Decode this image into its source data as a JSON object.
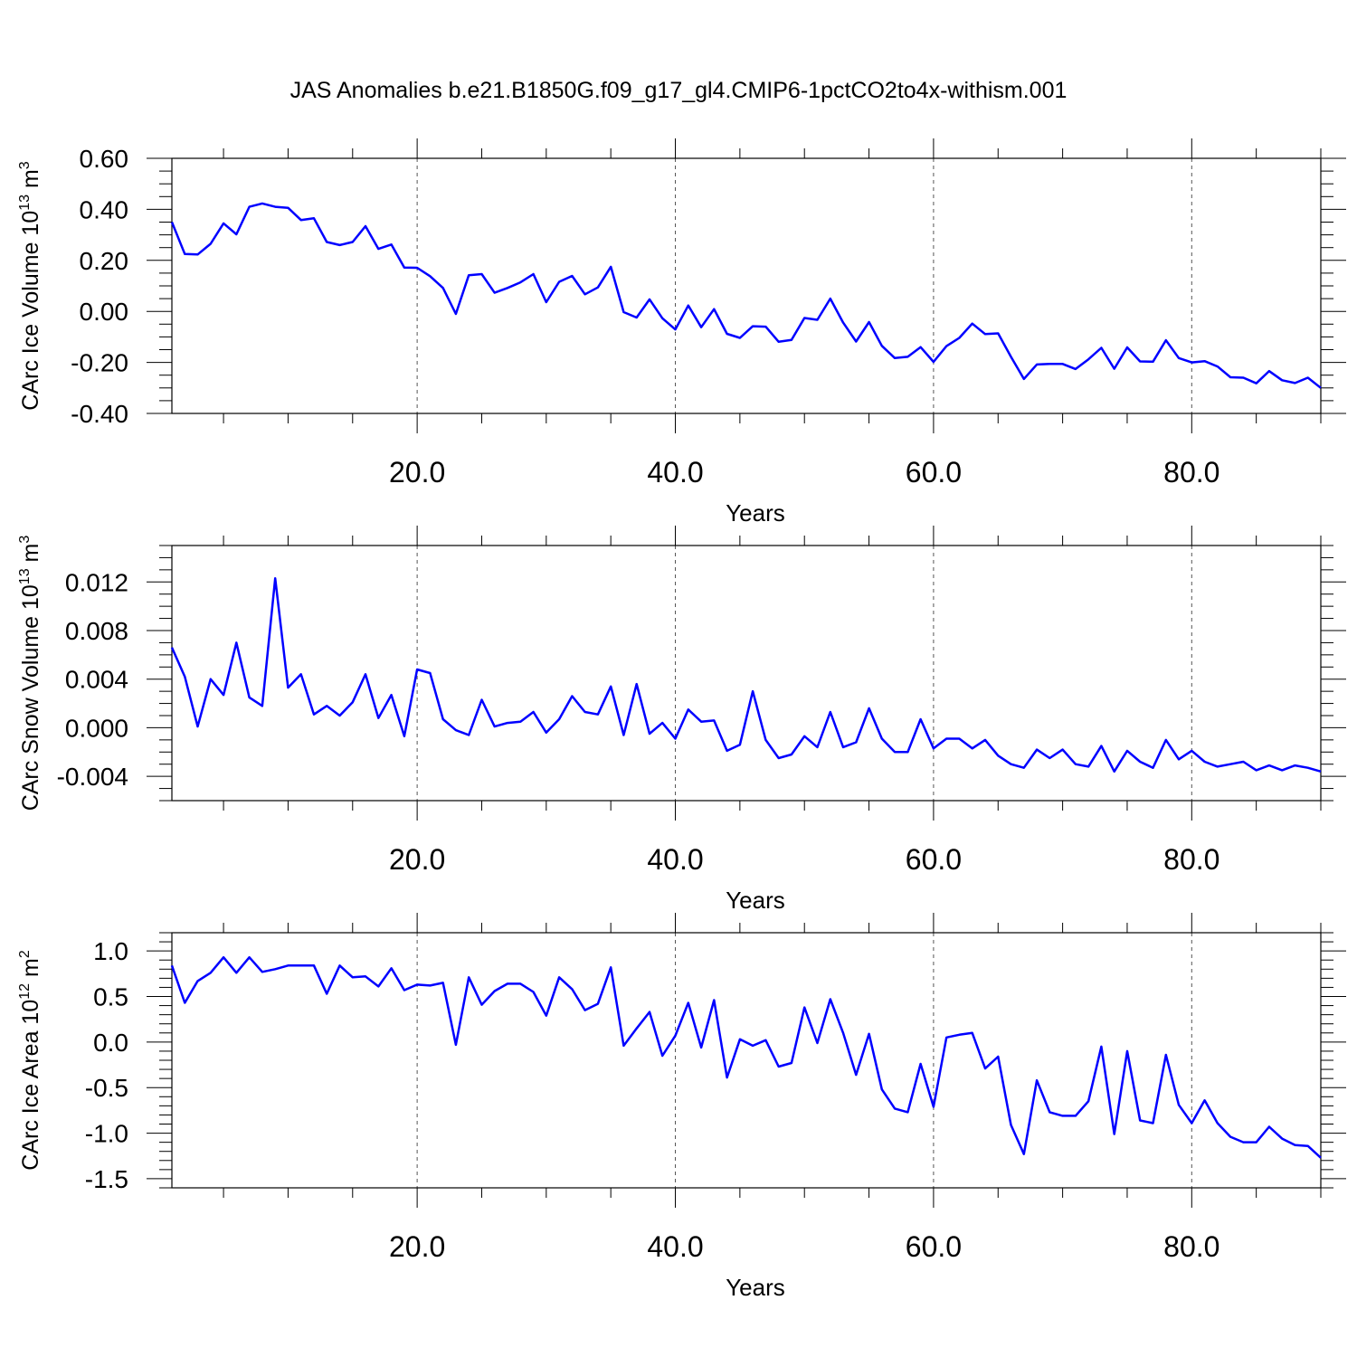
{
  "title": "JAS Anomalies b.e21.B1850G.f09_g17_gl4.CMIP6-1pctCO2to4x-withism.001",
  "line_color": "#0000ff",
  "chart_data": [
    {
      "type": "line",
      "xlabel": "Years",
      "ylabel_main": "CArc Ice Volume 10",
      "ylabel_exp": "13",
      "ylabel_unit": "m",
      "ylabel_unit_exp": "3",
      "xlim": [
        1,
        90
      ],
      "ylim": [
        -0.4,
        0.6
      ],
      "x_ticks": [
        20,
        40,
        60,
        80
      ],
      "x_tick_labels": [
        "20.0",
        "40.0",
        "60.0",
        "80.0"
      ],
      "y_ticks": [
        -0.4,
        -0.2,
        0.0,
        0.2,
        0.4,
        0.6
      ],
      "y_tick_labels": [
        "-0.40",
        "-0.20",
        "0.00",
        "0.20",
        "0.40",
        "0.60"
      ],
      "y_minor_step": 0.05,
      "grid": "vertical dashed at major x ticks",
      "x": [
        1,
        2,
        3,
        4,
        5,
        6,
        7,
        8,
        9,
        10,
        11,
        12,
        13,
        14,
        15,
        16,
        17,
        18,
        19,
        20,
        21,
        22,
        23,
        24,
        25,
        26,
        27,
        28,
        29,
        30,
        31,
        32,
        33,
        34,
        35,
        36,
        37,
        38,
        39,
        40,
        41,
        42,
        43,
        44,
        45,
        46,
        47,
        48,
        49,
        50,
        51,
        52,
        53,
        54,
        55,
        56,
        57,
        58,
        59,
        60,
        61,
        62,
        63,
        64,
        65,
        66,
        67,
        68,
        69,
        70,
        71,
        72,
        73,
        74,
        75,
        76,
        77,
        78,
        79,
        80,
        81,
        82,
        83,
        84,
        85,
        86,
        87,
        88,
        89,
        90
      ],
      "values": [
        0.35,
        0.225,
        0.223,
        0.265,
        0.345,
        0.302,
        0.41,
        0.423,
        0.41,
        0.406,
        0.358,
        0.365,
        0.272,
        0.26,
        0.272,
        0.334,
        0.245,
        0.262,
        0.172,
        0.171,
        0.138,
        0.092,
        -0.01,
        0.142,
        0.146,
        0.073,
        0.092,
        0.114,
        0.146,
        0.036,
        0.116,
        0.139,
        0.067,
        0.094,
        0.175,
        -0.003,
        -0.024,
        0.047,
        -0.027,
        -0.071,
        0.023,
        -0.062,
        0.009,
        -0.088,
        -0.104,
        -0.058,
        -0.06,
        -0.119,
        -0.112,
        -0.026,
        -0.033,
        0.05,
        -0.044,
        -0.118,
        -0.042,
        -0.135,
        -0.183,
        -0.178,
        -0.14,
        -0.198,
        -0.136,
        -0.104,
        -0.048,
        -0.089,
        -0.086,
        -0.178,
        -0.265,
        -0.208,
        -0.206,
        -0.206,
        -0.226,
        -0.188,
        -0.143,
        -0.225,
        -0.141,
        -0.196,
        -0.197,
        -0.113,
        -0.183,
        -0.2,
        -0.195,
        -0.216,
        -0.258,
        -0.26,
        -0.282,
        -0.234,
        -0.27,
        -0.281,
        -0.26,
        -0.3
      ]
    },
    {
      "type": "line",
      "xlabel": "Years",
      "ylabel_main": "CArc Snow Volume 10",
      "ylabel_exp": "13",
      "ylabel_unit": "m",
      "ylabel_unit_exp": "3",
      "xlim": [
        1,
        90
      ],
      "ylim": [
        -0.006,
        0.015
      ],
      "x_ticks": [
        20,
        40,
        60,
        80
      ],
      "x_tick_labels": [
        "20.0",
        "40.0",
        "60.0",
        "80.0"
      ],
      "y_ticks": [
        -0.004,
        0.0,
        0.004,
        0.008,
        0.012
      ],
      "y_tick_labels": [
        "-0.004",
        "0.000",
        "0.004",
        "0.008",
        "0.012"
      ],
      "y_minor_step": 0.001,
      "grid": "vertical dashed at major x ticks",
      "x": [
        1,
        2,
        3,
        4,
        5,
        6,
        7,
        8,
        9,
        10,
        11,
        12,
        13,
        14,
        15,
        16,
        17,
        18,
        19,
        20,
        21,
        22,
        23,
        24,
        25,
        26,
        27,
        28,
        29,
        30,
        31,
        32,
        33,
        34,
        35,
        36,
        37,
        38,
        39,
        40,
        41,
        42,
        43,
        44,
        45,
        46,
        47,
        48,
        49,
        50,
        51,
        52,
        53,
        54,
        55,
        56,
        57,
        58,
        59,
        60,
        61,
        62,
        63,
        64,
        65,
        66,
        67,
        68,
        69,
        70,
        71,
        72,
        73,
        74,
        75,
        76,
        77,
        78,
        79,
        80,
        81,
        82,
        83,
        84,
        85,
        86,
        87,
        88,
        89,
        90
      ],
      "values": [
        0.0066,
        0.0042,
        0.0001,
        0.004,
        0.0027,
        0.007,
        0.0025,
        0.0018,
        0.0123,
        0.0033,
        0.0044,
        0.0011,
        0.0018,
        0.001,
        0.0021,
        0.0044,
        0.0008,
        0.0027,
        -0.0007,
        0.0048,
        0.0045,
        0.0007,
        -0.0002,
        -0.0006,
        0.0023,
        0.0001,
        0.0004,
        0.0005,
        0.0013,
        -0.0004,
        0.0007,
        0.0026,
        0.0013,
        0.0011,
        0.0034,
        -0.0006,
        0.0036,
        -0.0005,
        0.0004,
        -0.0009,
        0.0015,
        0.0005,
        0.0006,
        -0.0019,
        -0.0014,
        0.003,
        -0.001,
        -0.0025,
        -0.0022,
        -0.0007,
        -0.0016,
        0.0013,
        -0.0016,
        -0.0012,
        0.0016,
        -0.0009,
        -0.002,
        -0.002,
        0.0007,
        -0.0017,
        -0.0009,
        -0.0009,
        -0.0017,
        -0.001,
        -0.0023,
        -0.003,
        -0.0033,
        -0.0018,
        -0.0025,
        -0.0018,
        -0.003,
        -0.0032,
        -0.0015,
        -0.0036,
        -0.0019,
        -0.0028,
        -0.0033,
        -0.001,
        -0.0026,
        -0.0019,
        -0.0028,
        -0.0032,
        -0.003,
        -0.0028,
        -0.0035,
        -0.0031,
        -0.0035,
        -0.0031,
        -0.0033,
        -0.0036
      ]
    },
    {
      "type": "line",
      "xlabel": "Years",
      "ylabel_main": "CArc Ice Area 10",
      "ylabel_exp": "12",
      "ylabel_unit": "m",
      "ylabel_unit_exp": "2",
      "xlim": [
        1,
        90
      ],
      "ylim": [
        -1.6,
        1.2
      ],
      "x_ticks": [
        20,
        40,
        60,
        80
      ],
      "x_tick_labels": [
        "20.0",
        "40.0",
        "60.0",
        "80.0"
      ],
      "y_ticks": [
        -1.5,
        -1.0,
        -0.5,
        0.0,
        0.5,
        1.0
      ],
      "y_tick_labels": [
        "-1.5",
        "-1.0",
        "-0.5",
        "0.0",
        "0.5",
        "1.0"
      ],
      "y_minor_step": 0.1,
      "grid": "vertical dashed at major x ticks",
      "x": [
        1,
        2,
        3,
        4,
        5,
        6,
        7,
        8,
        9,
        10,
        11,
        12,
        13,
        14,
        15,
        16,
        17,
        18,
        19,
        20,
        21,
        22,
        23,
        24,
        25,
        26,
        27,
        28,
        29,
        30,
        31,
        32,
        33,
        34,
        35,
        36,
        37,
        38,
        39,
        40,
        41,
        42,
        43,
        44,
        45,
        46,
        47,
        48,
        49,
        50,
        51,
        52,
        53,
        54,
        55,
        56,
        57,
        58,
        59,
        60,
        61,
        62,
        63,
        64,
        65,
        66,
        67,
        68,
        69,
        70,
        71,
        72,
        73,
        74,
        75,
        76,
        77,
        78,
        79,
        80,
        81,
        82,
        83,
        84,
        85,
        86,
        87,
        88,
        89,
        90
      ],
      "values": [
        0.84,
        0.43,
        0.67,
        0.76,
        0.93,
        0.76,
        0.93,
        0.77,
        0.8,
        0.84,
        0.84,
        0.84,
        0.53,
        0.84,
        0.71,
        0.72,
        0.61,
        0.81,
        0.57,
        0.63,
        0.62,
        0.65,
        -0.03,
        0.71,
        0.41,
        0.56,
        0.64,
        0.64,
        0.55,
        0.29,
        0.71,
        0.58,
        0.35,
        0.42,
        0.82,
        -0.04,
        0.15,
        0.33,
        -0.15,
        0.07,
        0.43,
        -0.06,
        0.46,
        -0.39,
        0.03,
        -0.04,
        0.02,
        -0.27,
        -0.23,
        0.38,
        -0.01,
        0.47,
        0.1,
        -0.36,
        0.09,
        -0.52,
        -0.73,
        -0.77,
        -0.24,
        -0.71,
        0.05,
        0.08,
        0.1,
        -0.29,
        -0.16,
        -0.91,
        -1.23,
        -0.42,
        -0.77,
        -0.81,
        -0.81,
        -0.65,
        -0.05,
        -1.01,
        -0.1,
        -0.86,
        -0.89,
        -0.14,
        -0.69,
        -0.89,
        -0.64,
        -0.89,
        -1.04,
        -1.1,
        -1.1,
        -0.93,
        -1.06,
        -1.13,
        -1.14,
        -1.27
      ]
    }
  ]
}
